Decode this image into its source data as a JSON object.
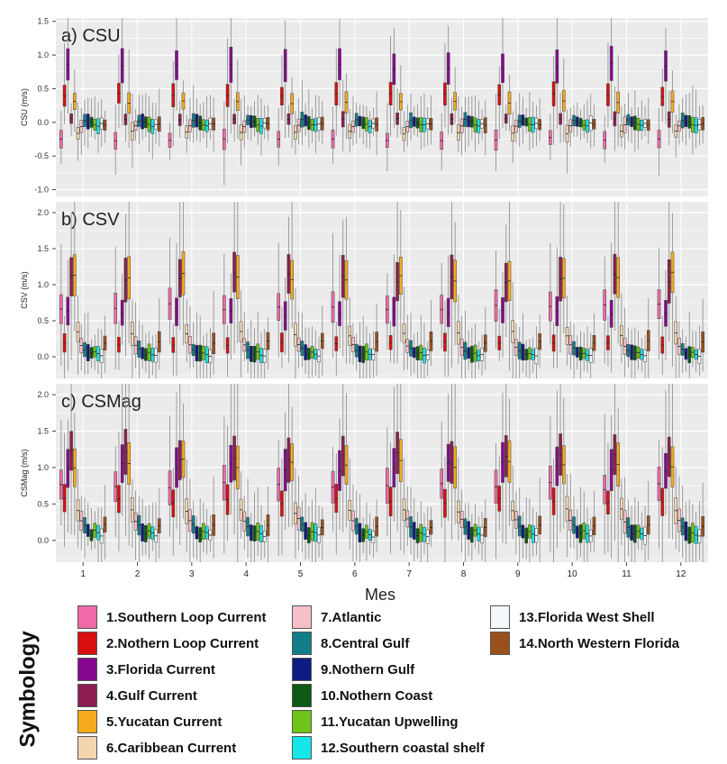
{
  "chart_data": [
    {
      "type": "box",
      "panel_label": "a) CSU",
      "ylabel": "CSU (m/s)",
      "ylim": [
        -1.1,
        1.55
      ],
      "yticks": [
        "-1.0",
        "-0.5",
        "0.0",
        "0.5",
        "1.0",
        "1.5"
      ],
      "ytick_values": [
        -1.0,
        -0.5,
        0.0,
        0.5,
        1.0,
        1.5
      ],
      "region_medians": [
        -0.25,
        0.4,
        0.85,
        0.05,
        0.3,
        -0.15,
        -0.05,
        0.03,
        0.02,
        0.0,
        -0.03,
        -0.05,
        -0.02,
        -0.03
      ]
    },
    {
      "type": "box",
      "panel_label": "b) CSV",
      "ylabel": "CSV (m/s)",
      "ylim": [
        -0.3,
        2.15
      ],
      "yticks": [
        "0.0",
        "0.5",
        "1.0",
        "1.5",
        "2.0"
      ],
      "ytick_values": [
        0.0,
        0.5,
        1.0,
        1.5,
        2.0
      ],
      "region_medians": [
        0.7,
        0.18,
        0.6,
        1.1,
        1.1,
        0.32,
        0.15,
        0.1,
        0.05,
        0.04,
        0.06,
        0.03,
        0.02,
        0.2
      ]
    },
    {
      "type": "box",
      "panel_label": "c) CSMag",
      "ylabel": "CSMag (m/s)",
      "ylim": [
        -0.3,
        2.15
      ],
      "yticks": [
        "0.0",
        "0.5",
        "1.0",
        "1.5",
        "2.0"
      ],
      "ytick_values": [
        0.0,
        0.5,
        1.0,
        1.5,
        2.0
      ],
      "region_medians": [
        0.75,
        0.55,
        1.0,
        1.15,
        1.05,
        0.4,
        0.28,
        0.2,
        0.12,
        0.08,
        0.12,
        0.09,
        0.06,
        0.2
      ]
    }
  ],
  "x_axis": {
    "label": "Mes",
    "categories": [
      "1",
      "2",
      "3",
      "4",
      "5",
      "6",
      "7",
      "8",
      "9",
      "10",
      "11",
      "12"
    ]
  },
  "legend": {
    "title": "Symbology",
    "items": [
      {
        "label": "1.Southern Loop Current",
        "color": "#f06aa8"
      },
      {
        "label": "2.Nothern Loop Current",
        "color": "#d90f0f"
      },
      {
        "label": "3.Florida Current",
        "color": "#86088f"
      },
      {
        "label": "4.Gulf Current",
        "color": "#8e1e52"
      },
      {
        "label": "5.Yucatan Current",
        "color": "#f6ab1f"
      },
      {
        "label": "6.Caribbean Current",
        "color": "#f3d5b0"
      },
      {
        "label": "7.Atlantic",
        "color": "#f7c0c8"
      },
      {
        "label": "8.Central Gulf",
        "color": "#117e8a"
      },
      {
        "label": "9.Nothern Gulf",
        "color": "#0c1c80"
      },
      {
        "label": "10.Nothern Coast",
        "color": "#0d5a13"
      },
      {
        "label": "11.Yucatan Upwelling",
        "color": "#6dc519"
      },
      {
        "label": "12.Southern coastal shelf",
        "color": "#16e6e8"
      },
      {
        "label": "13.Florida West Shell",
        "color": "#f2f8fb"
      },
      {
        "label": "14.North Western Florida",
        "color": "#9b501c"
      }
    ]
  },
  "colors": {
    "panel_background": "#ebebeb",
    "grid": "#ffffff",
    "whisker": "#8a8a8a"
  }
}
